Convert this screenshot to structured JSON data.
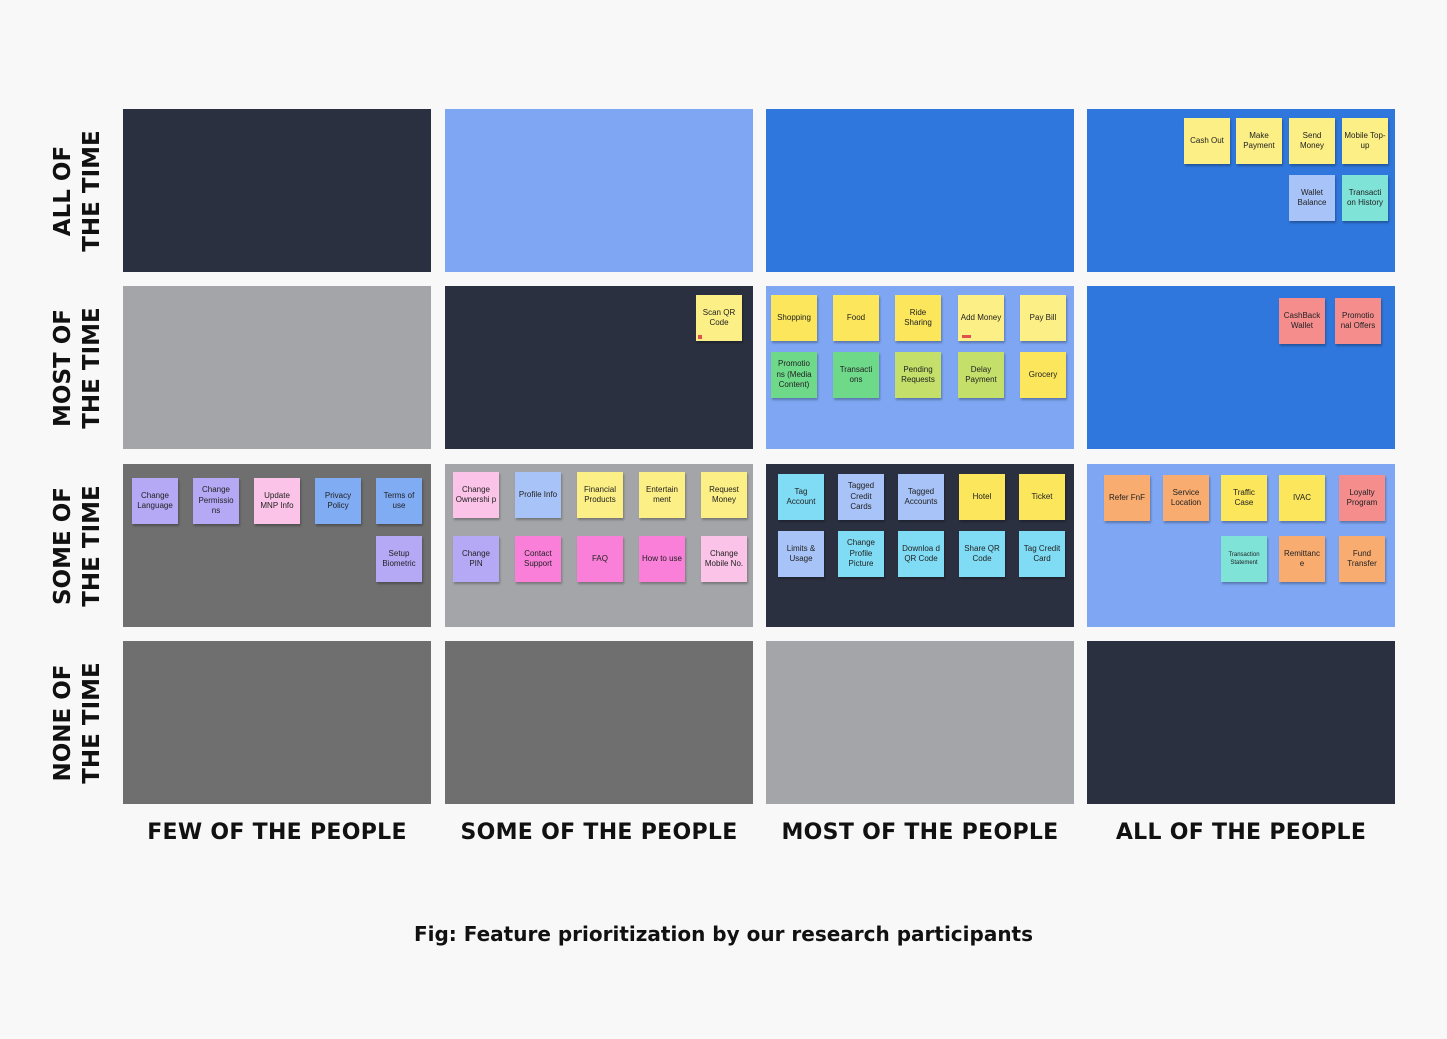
{
  "row_labels": [
    {
      "line1": "ALL OF",
      "line2": "THE TIME"
    },
    {
      "line1": "MOST OF",
      "line2": "THE TIME"
    },
    {
      "line1": "SOME OF",
      "line2": "THE TIME"
    },
    {
      "line1": "NONE OF",
      "line2": "THE TIME"
    }
  ],
  "column_labels": [
    "FEW OF THE PEOPLE",
    "SOME OF THE PEOPLE",
    "MOST OF THE PEOPLE",
    "ALL OF THE PEOPLE"
  ],
  "caption": "Fig: Feature prioritization by our research participants",
  "colors": {
    "cell_dark": "#2b3040",
    "cell_light_blue": "#7ea6f3",
    "cell_blue": "#2f77dc",
    "cell_light_gray": "#a4a5a8",
    "cell_gray": "#6f6f6f",
    "note_yellow": "#fcef85",
    "note_bright_yellow": "#fbe65c",
    "note_purple": "#b5a8f5",
    "note_pink": "#fbc3e8",
    "note_blue": "#80acf4",
    "note_light_blue": "#a8c3f7",
    "note_green": "#6fd98a",
    "note_lime": "#c4e06a",
    "note_cyan": "#80dcf5",
    "note_teal": "#7fe3d8",
    "note_red": "#f58d8d",
    "note_magenta": "#f97fd9",
    "note_orange": "#f8ac70"
  },
  "notes": {
    "all_time_all_people": [
      "Cash Out",
      "Make Payment",
      "Send Money",
      "Mobile Top-up",
      "Wallet Balance",
      "Transacti on History"
    ],
    "most_time_some_people": [
      "Scan QR Code"
    ],
    "most_time_most_people": [
      "Shopping",
      "Food",
      "Ride Sharing",
      "Add Money",
      "Pay Bill",
      "Promotio ns (Media Content)",
      "Transacti ons",
      "Pending Requests",
      "Delay Payment",
      "Grocery"
    ],
    "most_time_all_people": [
      "CashBack Wallet",
      "Promotio nal Offers"
    ],
    "some_time_few_people": [
      "Change Language",
      "Change Permissio ns",
      "Update MNP Info",
      "Privacy Policy",
      "Terms of use",
      "Setup Biometric"
    ],
    "some_time_some_people": [
      "Change Ownershi p",
      "Profile Info",
      "Financial Products",
      "Entertain ment",
      "Request Money",
      "Change PIN",
      "Contact Support",
      "FAQ",
      "How to use",
      "Change Mobile No."
    ],
    "some_time_most_people": [
      "Tag Account",
      "Tagged Credit Cards",
      "Tagged Accounts",
      "Hotel",
      "Ticket",
      "Limits & Usage",
      "Change Profile Picture",
      "Downloa d QR Code",
      "Share QR Code",
      "Tag Credit Card"
    ],
    "some_time_all_people": [
      "Refer FnF",
      "Service Location",
      "Traffic Case",
      "IVAC",
      "Loyalty Program",
      "Transaction Statement",
      "Remittanc e",
      "Fund Transfer"
    ]
  }
}
